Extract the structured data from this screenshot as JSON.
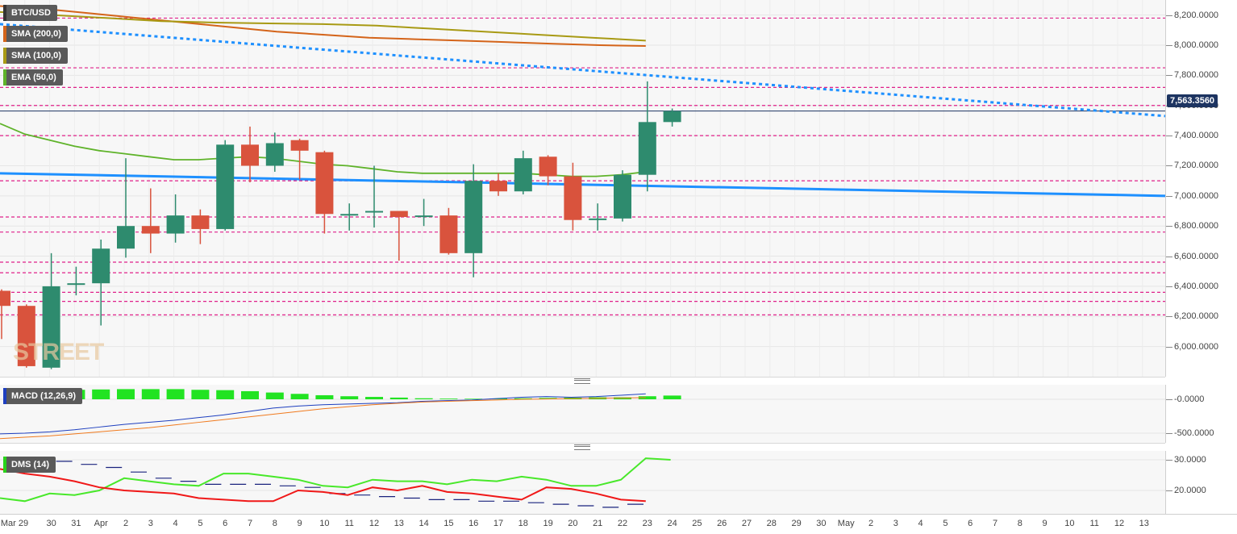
{
  "indicators": {
    "main": [
      {
        "label": "BTC/USD",
        "color": "#5a5a5a"
      },
      {
        "label": "SMA (200,0)",
        "color": "#d4641a"
      },
      {
        "label": "SMA (100,0)",
        "color": "#a89a14"
      },
      {
        "label": "EMA (50,0)",
        "color": "#5fb32a"
      }
    ],
    "macd": {
      "label": "MACD (12,26,9)",
      "color": "#1e3fbf"
    },
    "dms": {
      "label": "DMS (14)",
      "color": "#29d31a"
    }
  },
  "watermark": "STREET",
  "current_price": "7,563.3560",
  "price_axis": [
    "8,200.0000",
    "8,000.0000",
    "7,800.0000",
    "7,600.0000",
    "7,400.0000",
    "7,200.0000",
    "7,000.0000",
    "6,800.0000",
    "6,600.0000",
    "6,400.0000",
    "6,200.0000",
    "6,000.0000"
  ],
  "macd_axis": [
    "-0.0000",
    "-500.0000"
  ],
  "dms_axis": [
    "30.0000",
    "20.0000"
  ],
  "x_axis_labels": [
    "Mar 29",
    "30",
    "31",
    "Apr",
    "2",
    "3",
    "4",
    "5",
    "6",
    "7",
    "8",
    "9",
    "10",
    "11",
    "12",
    "13",
    "14",
    "15",
    "16",
    "17",
    "18",
    "19",
    "20",
    "21",
    "22",
    "23",
    "24",
    "25",
    "26",
    "27",
    "28",
    "29",
    "30",
    "May",
    "2",
    "3",
    "4",
    "5",
    "6",
    "7",
    "8",
    "9",
    "10",
    "11",
    "12",
    "13"
  ],
  "colors": {
    "up": "#2e8b6e",
    "down": "#d9533d",
    "support": "#e0218a",
    "trend_solid": "#1e90ff"
  },
  "chart_data": {
    "type": "candlestick",
    "title": "BTC/USD",
    "ylim": [
      5880,
      8300
    ],
    "candles": [
      {
        "x": "Mar 28",
        "open": 6370,
        "high": 6380,
        "low": 6050,
        "close": 6270
      },
      {
        "x": "Mar 29",
        "open": 6270,
        "high": 6280,
        "low": 5860,
        "close": 5870
      },
      {
        "x": "Mar 30",
        "open": 5860,
        "high": 6620,
        "low": 5850,
        "close": 6400
      },
      {
        "x": "Mar 31",
        "open": 6410,
        "high": 6530,
        "low": 6340,
        "close": 6420
      },
      {
        "x": "Apr 1",
        "open": 6420,
        "high": 6710,
        "low": 6140,
        "close": 6650
      },
      {
        "x": "Apr 2",
        "open": 6650,
        "high": 7250,
        "low": 6590,
        "close": 6800
      },
      {
        "x": "Apr 3",
        "open": 6800,
        "high": 7050,
        "low": 6620,
        "close": 6750
      },
      {
        "x": "Apr 4",
        "open": 6750,
        "high": 7010,
        "low": 6690,
        "close": 6870
      },
      {
        "x": "Apr 5",
        "open": 6870,
        "high": 6910,
        "low": 6680,
        "close": 6780
      },
      {
        "x": "Apr 6",
        "open": 6780,
        "high": 7370,
        "low": 6770,
        "close": 7340
      },
      {
        "x": "Apr 7",
        "open": 7340,
        "high": 7460,
        "low": 7090,
        "close": 7200
      },
      {
        "x": "Apr 8",
        "open": 7200,
        "high": 7420,
        "low": 7160,
        "close": 7350
      },
      {
        "x": "Apr 9",
        "open": 7370,
        "high": 7380,
        "low": 7110,
        "close": 7300
      },
      {
        "x": "Apr 10",
        "open": 7290,
        "high": 7300,
        "low": 6750,
        "close": 6880
      },
      {
        "x": "Apr 11",
        "open": 6880,
        "high": 6950,
        "low": 6770,
        "close": 6880
      },
      {
        "x": "Apr 12",
        "open": 6890,
        "high": 7200,
        "low": 6790,
        "close": 6900
      },
      {
        "x": "Apr 13",
        "open": 6900,
        "high": 6900,
        "low": 6570,
        "close": 6860
      },
      {
        "x": "Apr 14",
        "open": 6860,
        "high": 6980,
        "low": 6800,
        "close": 6870
      },
      {
        "x": "Apr 15",
        "open": 6870,
        "high": 6920,
        "low": 6610,
        "close": 6620
      },
      {
        "x": "Apr 16",
        "open": 6620,
        "high": 7210,
        "low": 6460,
        "close": 7100
      },
      {
        "x": "Apr 17",
        "open": 7100,
        "high": 7150,
        "low": 7000,
        "close": 7030
      },
      {
        "x": "Apr 18",
        "open": 7030,
        "high": 7300,
        "low": 7010,
        "close": 7250
      },
      {
        "x": "Apr 19",
        "open": 7260,
        "high": 7270,
        "low": 7070,
        "close": 7130
      },
      {
        "x": "Apr 20",
        "open": 7130,
        "high": 7220,
        "low": 6770,
        "close": 6840
      },
      {
        "x": "Apr 21",
        "open": 6840,
        "high": 6950,
        "low": 6770,
        "close": 6850
      },
      {
        "x": "Apr 22",
        "open": 6850,
        "high": 7170,
        "low": 6830,
        "close": 7140
      },
      {
        "x": "Apr 23",
        "open": 7140,
        "high": 7760,
        "low": 7030,
        "close": 7490
      },
      {
        "x": "Apr 24",
        "open": 7490,
        "high": 7580,
        "low": 7460,
        "close": 7563
      }
    ],
    "series": [
      {
        "name": "SMA (200,0)",
        "values": [
          8260,
          8240,
          8210,
          8180,
          8150,
          8120,
          8090,
          8070,
          8050,
          8040,
          8030,
          8020,
          8010,
          8000,
          7995
        ]
      },
      {
        "name": "SMA (100,0)",
        "values": [
          8220,
          8200,
          8180,
          8160,
          8150,
          8145,
          8140,
          8130,
          8110,
          8090,
          8070,
          8050,
          8030
        ]
      },
      {
        "name": "EMA (50,0)",
        "values": [
          7480,
          7410,
          7370,
          7330,
          7300,
          7280,
          7260,
          7240,
          7240,
          7250,
          7260,
          7250,
          7230,
          7210,
          7200,
          7180,
          7160,
          7150,
          7150,
          7150,
          7150,
          7150,
          7140,
          7130,
          7130,
          7140,
          7160
        ]
      }
    ],
    "levels": [
      8180,
      7850,
      7720,
      7600,
      7400,
      7100,
      6860,
      6760,
      6560,
      6490,
      6360,
      6300,
      6210
    ],
    "macd": {
      "histogram": [
        140,
        140,
        140,
        145,
        150,
        150,
        150,
        140,
        135,
        120,
        100,
        80,
        60,
        45,
        35,
        25,
        15,
        10,
        8,
        10,
        15,
        20,
        25,
        30,
        30,
        45,
        55
      ],
      "macd_line": [
        -510,
        -500,
        -480,
        -450,
        -410,
        -370,
        -340,
        -310,
        -270,
        -230,
        -180,
        -130,
        -100,
        -80,
        -70,
        -60,
        -50,
        -30,
        -20,
        -10,
        10,
        30,
        40,
        30,
        40,
        60,
        80
      ],
      "signal_line": [
        -580,
        -560,
        -540,
        -510,
        -480,
        -450,
        -420,
        -380,
        -340,
        -300,
        -260,
        -220,
        -180,
        -140,
        -110,
        -80,
        -60,
        -40,
        -30,
        -20,
        -10,
        0,
        5,
        10,
        15,
        20,
        25
      ]
    },
    "dms": {
      "plus_di": [
        17.5,
        16.5,
        19,
        18.5,
        20,
        24,
        23,
        22,
        21.5,
        25.5,
        25.5,
        24.5,
        23.5,
        21.5,
        21,
        23.5,
        23,
        23,
        22,
        23.5,
        23,
        24.5,
        23.5,
        21.5,
        21.5,
        23.5,
        30.5,
        30
      ],
      "minus_di": [
        27,
        25.5,
        24.5,
        23,
        21,
        20,
        19.5,
        19,
        17.5,
        17,
        16.5,
        16.5,
        20,
        19.5,
        18.5,
        21,
        20,
        21.5,
        19.5,
        19,
        18,
        17,
        21,
        20.5,
        19,
        17,
        16.5
      ],
      "adx": [
        30.5,
        30,
        29.5,
        28.5,
        27.5,
        26,
        24,
        23,
        22,
        22,
        22,
        21.5,
        21,
        19,
        18.5,
        18,
        17.5,
        17,
        17,
        16.5,
        16.5,
        16,
        15.5,
        15,
        14.5,
        15.5
      ]
    }
  }
}
